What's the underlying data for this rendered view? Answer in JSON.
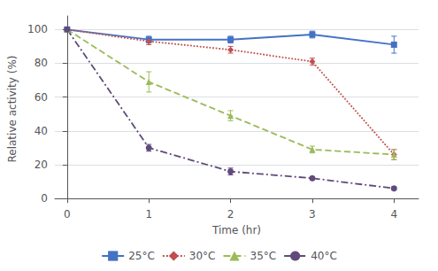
{
  "chart_data": {
    "type": "line",
    "xlabel": "Time (hr)",
    "ylabel": "Relative activity (%)",
    "x": [
      0,
      1,
      2,
      3,
      4
    ],
    "series": [
      {
        "name": "25°C",
        "color": "#4472C4",
        "values": [
          100,
          94,
          94,
          97,
          91
        ],
        "yerr": [
          1,
          2,
          2,
          2,
          5
        ],
        "marker": "square",
        "line_style": "solid"
      },
      {
        "name": "30°C",
        "color": "#C0504D",
        "values": [
          100,
          93,
          88,
          81,
          26
        ],
        "yerr": [
          1,
          2,
          2,
          2,
          3
        ],
        "marker": "diamond",
        "line_style": "dotted"
      },
      {
        "name": "35°C",
        "color": "#9BBB59",
        "values": [
          100,
          69,
          49,
          29,
          26
        ],
        "yerr": [
          1,
          6,
          3,
          2,
          3
        ],
        "marker": "triangle",
        "line_style": "dashed"
      },
      {
        "name": "40°C",
        "color": "#604A7B",
        "values": [
          100,
          30,
          16,
          12,
          6
        ],
        "yerr": [
          1,
          2,
          2,
          1,
          1
        ],
        "marker": "circle",
        "line_style": "dashdot"
      }
    ],
    "xlim": [
      -0.15,
      4.3
    ],
    "xticks": [
      0,
      1,
      2,
      3,
      4
    ],
    "ylim": [
      -2,
      108
    ],
    "yticks": [
      0,
      20,
      40,
      60,
      80,
      100
    ],
    "grid": true,
    "legend": "bottom"
  }
}
